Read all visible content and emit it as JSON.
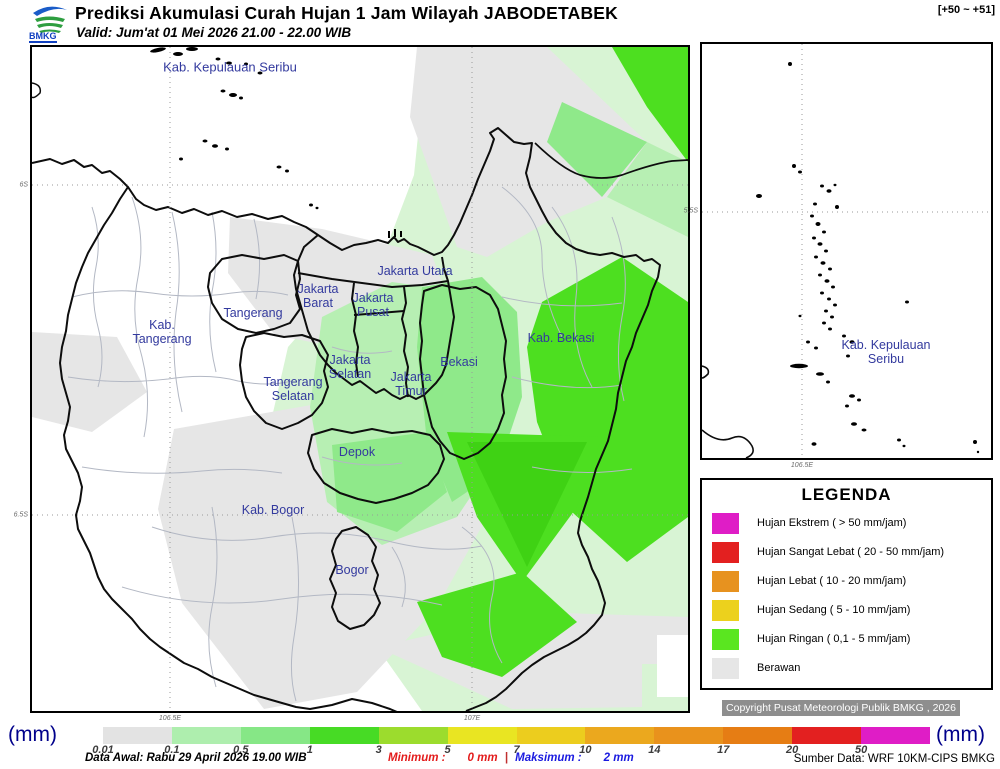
{
  "header": {
    "title": "Prediksi Akumulasi Curah Hujan 1 Jam Wilayah JABODETABEK",
    "valid": "Valid: Jum'at 01 Mei 2026 21.00 - 22.00 WIB",
    "lead_range": "[+50 ~ +51]",
    "logo_text": "BMKG"
  },
  "map": {
    "labels": [
      {
        "name": "kab-kepulauan-seribu",
        "text": "Kab. Kepulauan Seribu"
      },
      {
        "name": "jakarta-utara",
        "text": "Jakarta Utara"
      },
      {
        "name": "jakarta-barat",
        "text": "Jakarta\nBarat"
      },
      {
        "name": "jakarta-pusat",
        "text": "Jakarta\nPusat"
      },
      {
        "name": "tangerang",
        "text": "Tangerang"
      },
      {
        "name": "kab-tangerang",
        "text": "Kab.\nTangerang"
      },
      {
        "name": "jakarta-selatan",
        "text": "Jakarta\nSelatan"
      },
      {
        "name": "jakarta-timur",
        "text": "Jakarta\nTimur"
      },
      {
        "name": "tangerang-selatan",
        "text": "Tangerang\nSelatan"
      },
      {
        "name": "bekasi",
        "text": "Bekasi"
      },
      {
        "name": "kab-bekasi",
        "text": "Kab. Bekasi"
      },
      {
        "name": "depok",
        "text": "Depok"
      },
      {
        "name": "kab-bogor",
        "text": "Kab. Bogor"
      },
      {
        "name": "bogor",
        "text": "Bogor"
      }
    ],
    "axis": {
      "left": [
        "6S",
        "6.5S"
      ],
      "bottom": [
        "106.5E",
        "107E"
      ]
    }
  },
  "inset": {
    "label": "Kab. Kepulauan Seribu",
    "axis_left": "5.5S",
    "axis_bottom": "106.5E"
  },
  "legend": {
    "title": "LEGENDA",
    "items": [
      {
        "label": "Hujan Ekstrem ( > 50 mm/jam)",
        "color": "#df1dc6"
      },
      {
        "label": "Hujan Sangat Lebat ( 20 - 50 mm/jam)",
        "color": "#e32020"
      },
      {
        "label": "Hujan Lebat ( 10 - 20 mm/jam)",
        "color": "#e7921f"
      },
      {
        "label": "Hujan Sedang ( 5 - 10 mm/jam)",
        "color": "#ecd11d"
      },
      {
        "label": "Hujan Ringan ( 0,1 - 5 mm/jam)",
        "color": "#5ae620"
      },
      {
        "label": "Berawan",
        "color": "#e6e6e6"
      }
    ]
  },
  "colorbar": {
    "unit": "(mm)",
    "segments": [
      {
        "value": "0.01",
        "color": "#e3e3e3"
      },
      {
        "value": "0.1",
        "color": "#aeeeae"
      },
      {
        "value": "0.5",
        "color": "#86e786"
      },
      {
        "value": "1",
        "color": "#47db25"
      },
      {
        "value": "3",
        "color": "#9cdc2d"
      },
      {
        "value": "5",
        "color": "#e9e522"
      },
      {
        "value": "7",
        "color": "#eccd1e"
      },
      {
        "value": "10",
        "color": "#eba81e"
      },
      {
        "value": "14",
        "color": "#e9921c"
      },
      {
        "value": "17",
        "color": "#e67d14"
      },
      {
        "value": "20",
        "color": "#e32020"
      },
      {
        "value": "50",
        "color": "#df1dc6"
      }
    ]
  },
  "footer": {
    "copyright": "Copyright Pusat Meteorologi Publik BMKG , 2026",
    "data_awal": "Data Awal: Rabu 29 April 2026 19.00 WIB",
    "minimum_label": "Minimum :",
    "minimum_value": "0 mm",
    "separator": "|",
    "maximum_label": "Maksimum :",
    "maximum_value": "2 mm",
    "source": "Sumber Data: WRF 10KM-CIPS BMKG"
  }
}
